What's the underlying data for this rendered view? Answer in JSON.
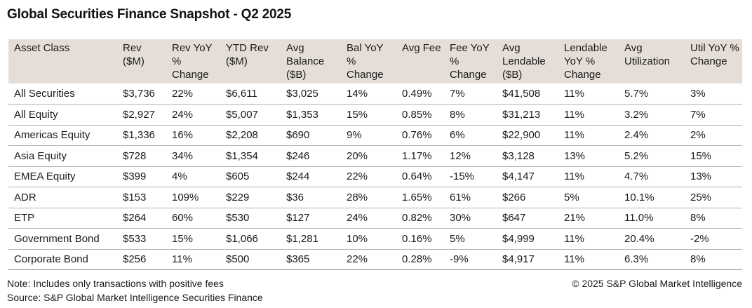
{
  "title": "Global Securities Finance Snapshot - Q2 2025",
  "table": {
    "headers": [
      "Asset Class",
      "Rev ($M)",
      "Rev YoY % Change",
      "YTD Rev ($M)",
      "Avg Balance ($B)",
      "Bal YoY % Change",
      "Avg Fee",
      "Fee YoY % Change",
      "Avg Lendable ($B)",
      "Lendable YoY % Change",
      "Avg Utilization",
      "Util YoY % Change"
    ],
    "rows": [
      [
        "All Securities",
        "$3,736",
        "22%",
        "$6,611",
        "$3,025",
        "14%",
        "0.49%",
        "7%",
        "$41,508",
        "11%",
        "5.7%",
        "3%"
      ],
      [
        "All Equity",
        "$2,927",
        "24%",
        "$5,007",
        "$1,353",
        "15%",
        "0.85%",
        "8%",
        "$31,213",
        "11%",
        "3.2%",
        "7%"
      ],
      [
        "Americas Equity",
        "$1,336",
        "16%",
        "$2,208",
        "$690",
        "9%",
        "0.76%",
        "6%",
        "$22,900",
        "11%",
        "2.4%",
        "2%"
      ],
      [
        "Asia Equity",
        "$728",
        "34%",
        "$1,354",
        "$246",
        "20%",
        "1.17%",
        "12%",
        "$3,128",
        "13%",
        "5.2%",
        "15%"
      ],
      [
        "EMEA Equity",
        "$399",
        "4%",
        "$605",
        "$244",
        "22%",
        "0.64%",
        "-15%",
        "$4,147",
        "11%",
        "4.7%",
        "13%"
      ],
      [
        "ADR",
        "$153",
        "109%",
        "$229",
        "$36",
        "28%",
        "1.65%",
        "61%",
        "$266",
        "5%",
        "10.1%",
        "25%"
      ],
      [
        "ETP",
        "$264",
        "60%",
        "$530",
        "$127",
        "24%",
        "0.82%",
        "30%",
        "$647",
        "21%",
        "11.0%",
        "8%"
      ],
      [
        "Government Bond",
        "$533",
        "15%",
        "$1,066",
        "$1,281",
        "10%",
        "0.16%",
        "5%",
        "$4,999",
        "11%",
        "20.4%",
        "-2%"
      ],
      [
        "Corporate Bond",
        "$256",
        "11%",
        "$500",
        "$365",
        "22%",
        "0.28%",
        "-9%",
        "$4,917",
        "11%",
        "6.3%",
        "8%"
      ]
    ]
  },
  "footer": {
    "note": "Note: Includes only transactions with positive fees",
    "source": "Source: S&P Global Market Intelligence Securities Finance",
    "copyright": "© 2025 S&P Global Market Intelligence"
  },
  "colors": {
    "header_background": "#e5ded7",
    "row_divider": "#b9b3ad",
    "text": "#1a1a1a"
  }
}
